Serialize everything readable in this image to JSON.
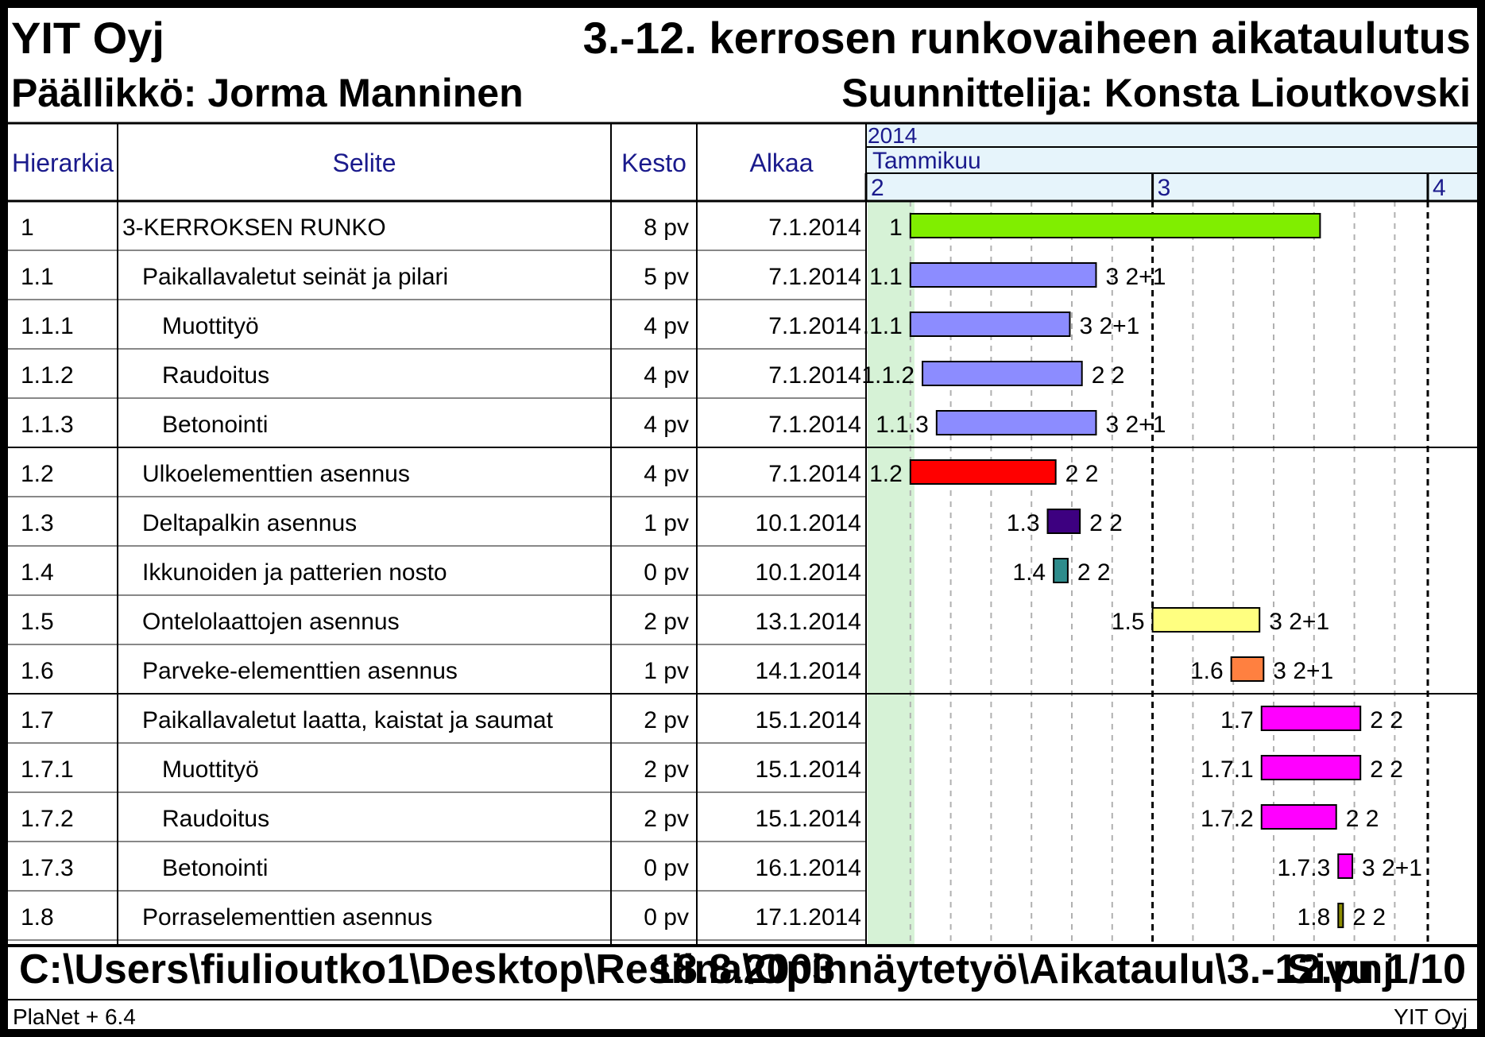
{
  "header": {
    "company": "YIT Oyj",
    "title": "3.-12. kerrosen runkovaiheen aikataulutus",
    "manager": "Päällikkö: Jorma Manninen",
    "planner": "Suunnittelija: Konsta Lioutkovski"
  },
  "columns": {
    "hierarchy": "Hierarkia",
    "description": "Selite",
    "duration": "Kesto",
    "start": "Alkaa"
  },
  "timescale": {
    "year": "2014",
    "month": "Tammikuu",
    "weeks": [
      "2",
      "3",
      "4"
    ]
  },
  "colors": {
    "header_bg": "#e6f4fb",
    "header_text": "#1a1a8c",
    "today_band": "#d6f2d6"
  },
  "chart_data": {
    "type": "gantt",
    "title": "3.-12. kerrosen runkovaiheen aikataulutus",
    "x_unit": "date",
    "x_range": [
      "6.1.2014",
      "19.1.2014"
    ],
    "week_starts": [
      "6.1.2014",
      "13.1.2014",
      "20.1.2014"
    ],
    "tasks": [
      {
        "id": "1",
        "name": "3-KERROKSEN RUNKO",
        "indent": 0,
        "duration": "8 pv",
        "start": "7.1.2014",
        "start_day": 7,
        "end_day": 17.15,
        "color": "#80ee00",
        "bar_label": "1",
        "after_label": ""
      },
      {
        "id": "1.1",
        "name": "Paikallavaletut seinät ja pilari",
        "indent": 1,
        "duration": "5 pv",
        "start": "7.1.2014",
        "start_day": 7,
        "end_day": 11.6,
        "color": "#8c8cff",
        "bar_label": "1.1",
        "after_label": "3 2+1"
      },
      {
        "id": "1.1.1",
        "name": "Muottityö",
        "indent": 2,
        "duration": "4 pv",
        "start": "7.1.2014",
        "start_day": 7,
        "end_day": 10.95,
        "color": "#8c8cff",
        "bar_label": ".1.1",
        "after_label": "3 2+1"
      },
      {
        "id": "1.1.2",
        "name": "Raudoitus",
        "indent": 2,
        "duration": "4 pv",
        "start": "7.1.2014",
        "start_day": 7.3,
        "end_day": 11.25,
        "color": "#8c8cff",
        "bar_label": "1.1.2",
        "after_label": "2 2"
      },
      {
        "id": "1.1.3",
        "name": "Betonointi",
        "indent": 2,
        "duration": "4 pv",
        "start": "7.1.2014",
        "start_day": 7.65,
        "end_day": 11.6,
        "color": "#8c8cff",
        "bar_label": "1.1.3",
        "after_label": "3 2+1"
      },
      {
        "id": "1.2",
        "name": "Ulkoelementtien asennus",
        "indent": 1,
        "duration": "4 pv",
        "start": "7.1.2014",
        "start_day": 7,
        "end_day": 10.6,
        "color": "#ff0000",
        "bar_label": "1.2",
        "after_label": "2 2"
      },
      {
        "id": "1.3",
        "name": "Deltapalkin asennus",
        "indent": 1,
        "duration": "1 pv",
        "start": "10.1.2014",
        "start_day": 10.4,
        "end_day": 11.2,
        "color": "#3d0080",
        "bar_label": "1.3",
        "after_label": "2 2"
      },
      {
        "id": "1.4",
        "name": "Ikkunoiden ja patterien nosto",
        "indent": 1,
        "duration": "0 pv",
        "start": "10.1.2014",
        "start_day": 10.55,
        "end_day": 10.9,
        "color": "#2e8c8c",
        "bar_label": "1.4",
        "after_label": "2 2"
      },
      {
        "id": "1.5",
        "name": "Ontelolaattojen asennus",
        "indent": 1,
        "duration": "2 pv",
        "start": "13.1.2014",
        "start_day": 13,
        "end_day": 15.65,
        "color": "#ffff80",
        "bar_label": "1.5",
        "after_label": "3 2+1"
      },
      {
        "id": "1.6",
        "name": "Parveke-elementtien asennus",
        "indent": 1,
        "duration": "1 pv",
        "start": "14.1.2014",
        "start_day": 14.95,
        "end_day": 15.75,
        "color": "#ff8040",
        "bar_label": "1.6",
        "after_label": "3 2+1"
      },
      {
        "id": "1.7",
        "name": "Paikallavaletut laatta, kaistat ja saumat",
        "indent": 1,
        "duration": "2 pv",
        "start": "15.1.2014",
        "start_day": 15.7,
        "end_day": 18.15,
        "color": "#ff00ff",
        "bar_label": "1.7",
        "after_label": "2 2"
      },
      {
        "id": "1.7.1",
        "name": "Muottityö",
        "indent": 2,
        "duration": "2 pv",
        "start": "15.1.2014",
        "start_day": 15.7,
        "end_day": 18.15,
        "color": "#ff00ff",
        "bar_label": "1.7.1",
        "after_label": "2 2"
      },
      {
        "id": "1.7.2",
        "name": "Raudoitus",
        "indent": 2,
        "duration": "2 pv",
        "start": "15.1.2014",
        "start_day": 15.7,
        "end_day": 17.55,
        "color": "#ff00ff",
        "bar_label": "1.7.2",
        "after_label": "2 2"
      },
      {
        "id": "1.7.3",
        "name": "Betonointi",
        "indent": 2,
        "duration": "0 pv",
        "start": "16.1.2014",
        "start_day": 17.6,
        "end_day": 17.95,
        "color": "#ff00ff",
        "bar_label": "1.7.3",
        "after_label": "3 2+1"
      },
      {
        "id": "1.8",
        "name": "Porraselementtien asennus",
        "indent": 1,
        "duration": "0 pv",
        "start": "17.1.2014",
        "start_day": 17.6,
        "end_day": 17.72,
        "color": "#8c8c00",
        "bar_label": "1.8",
        "after_label": "2 2"
      }
    ]
  },
  "footer": {
    "path": "C:\\Users\\fiulioutko1\\Desktop\\Resiina\\Opinnäytetyö\\Aikataulu\\3.-12.pnj",
    "date": "18.8.2003",
    "page": "Sivu 1/10",
    "software": "PlaNet + 6.4",
    "company": "YIT Oyj"
  }
}
